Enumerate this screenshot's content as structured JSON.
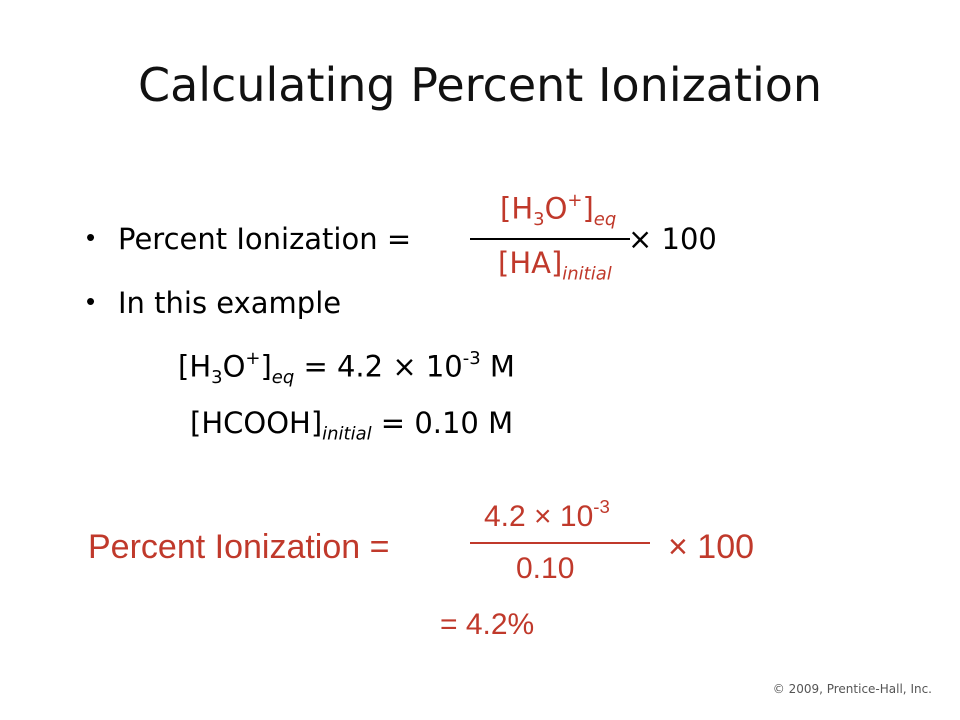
{
  "title": "Calculating Percent Ionization",
  "bullets": [
    {
      "text": "Percent Ionization ="
    },
    {
      "text": "In this example"
    }
  ],
  "formula": {
    "numerator": {
      "open": "[H",
      "sub1": "3",
      "mid": "O",
      "sup": "+",
      "close": "]",
      "sub2": "eq"
    },
    "denominator": {
      "main": "[HA]",
      "sub": "initial"
    },
    "times": "× 100"
  },
  "example": {
    "line1": {
      "open": "[H",
      "sub1": "3",
      "mid": "O",
      "sup": "+",
      "close": "]",
      "sub2": "eq",
      "rest": " = 4.2 × 10",
      "exp": "-3",
      "unit": " M"
    },
    "line2": {
      "main": "[HCOOH]",
      "sub": "initial",
      "rest": " = 0.10 M"
    }
  },
  "calculation": {
    "label": "Percent Ionization =",
    "numerator": {
      "base": "4.2 × 10",
      "exp": "-3"
    },
    "denominator": "0.10",
    "times": "× 100",
    "result": "= 4.2%"
  },
  "copyright": "© 2009, Prentice-Hall, Inc.",
  "colors": {
    "accent": "#c0392b",
    "text": "#000000",
    "background": "#ffffff"
  }
}
